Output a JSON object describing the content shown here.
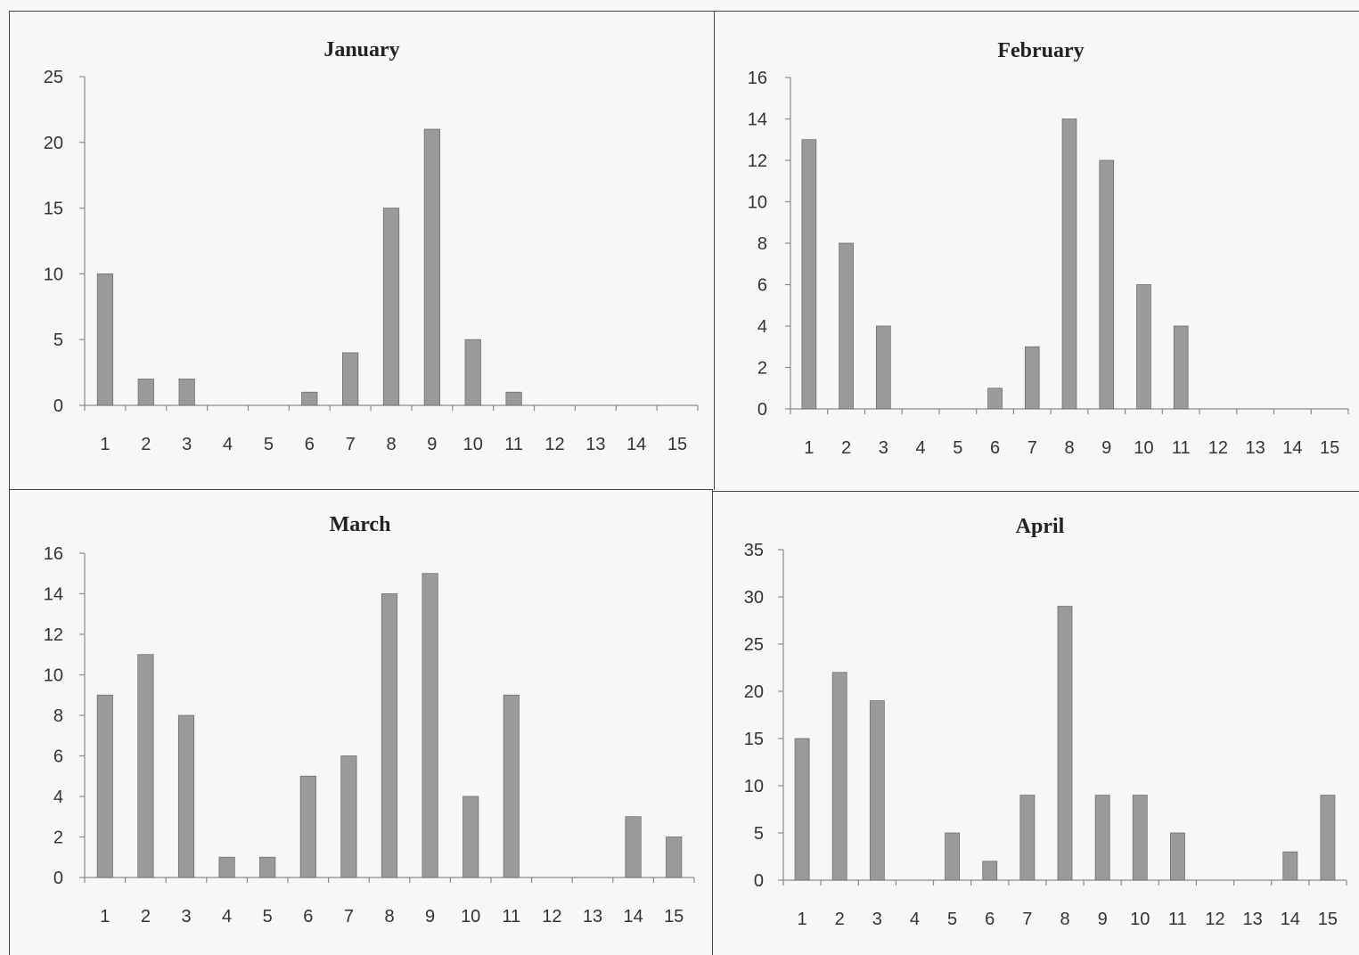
{
  "chart_data": [
    {
      "type": "bar",
      "title": "January",
      "categories": [
        "1",
        "2",
        "3",
        "4",
        "5",
        "6",
        "7",
        "8",
        "9",
        "10",
        "11",
        "12",
        "13",
        "14",
        "15"
      ],
      "values": [
        10,
        2,
        2,
        0,
        0,
        1,
        4,
        15,
        21,
        5,
        1,
        0,
        0,
        0,
        0
      ],
      "yticks": [
        0,
        5,
        10,
        15,
        20,
        25
      ],
      "ylim": [
        0,
        25
      ],
      "grid": false,
      "legend": "none",
      "bar_color": "#9a9a9a"
    },
    {
      "type": "bar",
      "title": "February",
      "categories": [
        "1",
        "2",
        "3",
        "4",
        "5",
        "6",
        "7",
        "8",
        "9",
        "10",
        "11",
        "12",
        "13",
        "14",
        "15"
      ],
      "values": [
        13,
        8,
        4,
        0,
        0,
        1,
        3,
        14,
        12,
        6,
        4,
        0,
        0,
        0,
        0
      ],
      "yticks": [
        0,
        2,
        4,
        6,
        8,
        10,
        12,
        14,
        16
      ],
      "ylim": [
        0,
        16
      ],
      "grid": false,
      "legend": "none",
      "bar_color": "#9a9a9a"
    },
    {
      "type": "bar",
      "title": "March",
      "categories": [
        "1",
        "2",
        "3",
        "4",
        "5",
        "6",
        "7",
        "8",
        "9",
        "10",
        "11",
        "12",
        "13",
        "14",
        "15"
      ],
      "values": [
        9,
        11,
        8,
        1,
        1,
        5,
        6,
        14,
        15,
        4,
        9,
        0,
        0,
        3,
        2
      ],
      "yticks": [
        0,
        2,
        4,
        6,
        8,
        10,
        12,
        14,
        16
      ],
      "ylim": [
        0,
        16
      ],
      "grid": false,
      "legend": "none",
      "bar_color": "#9a9a9a"
    },
    {
      "type": "bar",
      "title": "April",
      "categories": [
        "1",
        "2",
        "3",
        "4",
        "5",
        "6",
        "7",
        "8",
        "9",
        "10",
        "11",
        "12",
        "13",
        "14",
        "15"
      ],
      "values": [
        15,
        22,
        19,
        0,
        5,
        2,
        9,
        29,
        9,
        9,
        5,
        0,
        0,
        3,
        9
      ],
      "yticks": [
        0,
        5,
        10,
        15,
        20,
        25,
        30,
        35
      ],
      "ylim": [
        0,
        35
      ],
      "grid": false,
      "legend": "none",
      "bar_color": "#9a9a9a"
    }
  ]
}
